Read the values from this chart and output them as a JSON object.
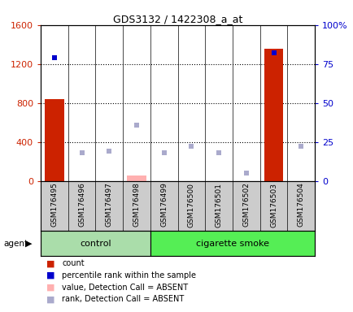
{
  "title": "GDS3132 / 1422308_a_at",
  "samples": [
    "GSM176495",
    "GSM176496",
    "GSM176497",
    "GSM176498",
    "GSM176499",
    "GSM176500",
    "GSM176501",
    "GSM176502",
    "GSM176503",
    "GSM176504"
  ],
  "bar_values": [
    840,
    0,
    0,
    0,
    0,
    0,
    0,
    0,
    1360,
    0
  ],
  "bar_absent_values": [
    0,
    0,
    0,
    60,
    0,
    0,
    0,
    0,
    0,
    0
  ],
  "rank_present_pct": [
    79,
    0,
    0,
    0,
    0,
    0,
    0,
    0,
    82,
    0
  ],
  "rank_absent_pct": [
    0,
    18,
    19,
    36,
    18,
    22,
    18,
    5,
    0,
    22
  ],
  "left_ylim": [
    0,
    1600
  ],
  "right_ylim": [
    0,
    100
  ],
  "left_yticks": [
    0,
    400,
    800,
    1200,
    1600
  ],
  "right_yticks": [
    0,
    25,
    50,
    75,
    100
  ],
  "right_yticklabels": [
    "0",
    "25",
    "50",
    "75",
    "100%"
  ],
  "bar_color": "#CC2200",
  "bar_absent_color": "#FFB0B0",
  "rank_present_color": "#0000CC",
  "rank_absent_color": "#AAAACC",
  "control_color": "#AADDAA",
  "smoke_color": "#55EE55",
  "bg_color": "#CCCCCC",
  "grid_dotted_ticks": [
    400,
    800,
    1200
  ],
  "control_n": 4,
  "smoke_n": 6,
  "legend_items": [
    [
      "#CC2200",
      "count"
    ],
    [
      "#0000CC",
      "percentile rank within the sample"
    ],
    [
      "#FFB0B0",
      "value, Detection Call = ABSENT"
    ],
    [
      "#AAAACC",
      "rank, Detection Call = ABSENT"
    ]
  ]
}
